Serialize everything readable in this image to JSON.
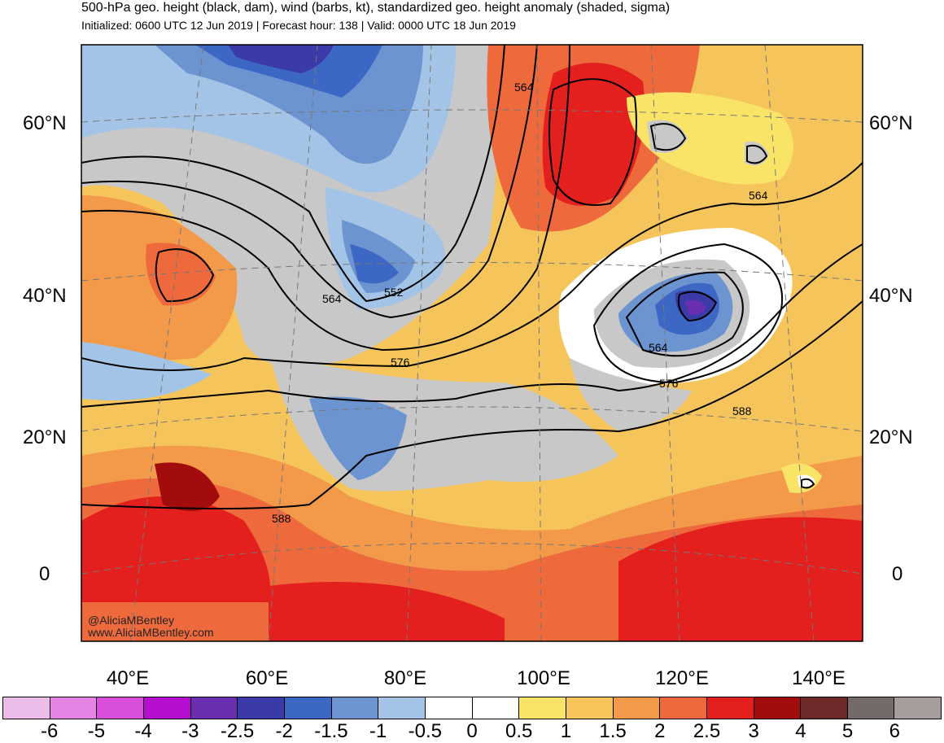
{
  "header": {
    "title": "500-hPa geo. height (black, dam), wind (barbs, kt), standardized geo. height anomaly (shaded, sigma)",
    "subtitle": "Initialized: 0600 UTC 12 Jun 2019 | Forecast hour: 138 | Valid: 0000 UTC 18 Jun 2019"
  },
  "map": {
    "lat_labels": [
      "60°N",
      "40°N",
      "20°N",
      "0"
    ],
    "lon_labels": [
      "40°E",
      "60°E",
      "80°E",
      "100°E",
      "120°E",
      "140°E"
    ],
    "contour_labels": [
      "564",
      "564",
      "552",
      "564",
      "576",
      "564",
      "576",
      "588",
      "588"
    ],
    "credit": [
      "@AliciaMBentley",
      "www.AliciaMBentley.com"
    ]
  },
  "colorbar": {
    "colors": [
      "#ebbde8",
      "#e684e6",
      "#d94fd9",
      "#b40fcf",
      "#6a2fb0",
      "#3a3aa8",
      "#3d67c4",
      "#6b94d1",
      "#a3c4e6",
      "#ffffff",
      "#ffffff",
      "#fae468",
      "#f5c55c",
      "#f2994a",
      "#ee6a3c",
      "#e3201e",
      "#a30c0c",
      "#6e2a2a",
      "#736a69",
      "#a89d9d"
    ],
    "ticks": [
      "-6",
      "-5",
      "-4",
      "-3",
      "-2.5",
      "-2",
      "-1.5",
      "-1",
      "-0.5",
      "0",
      "0.5",
      "1",
      "1.5",
      "2",
      "2.5",
      "3",
      "4",
      "5",
      "6"
    ]
  }
}
